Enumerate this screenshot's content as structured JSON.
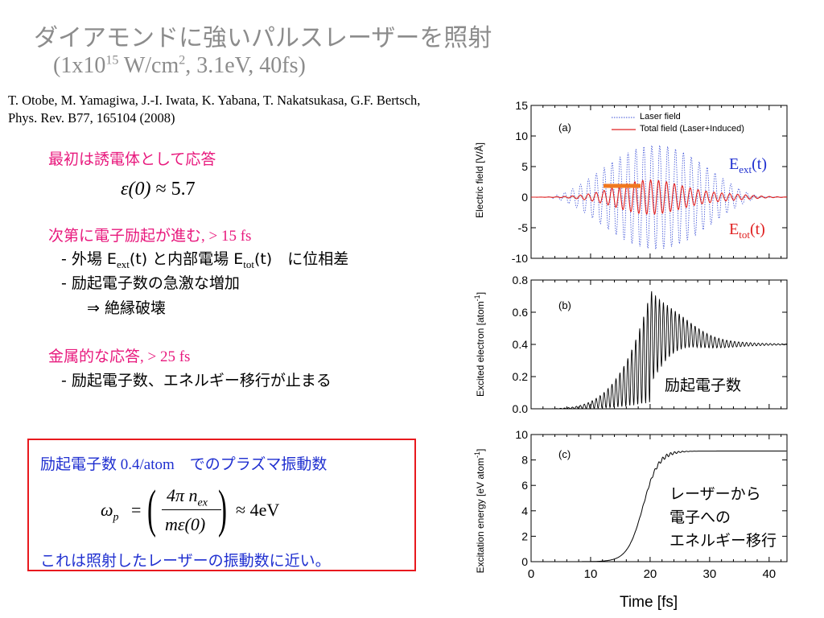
{
  "slide": {
    "title": "ダイアモンドに強いパルスレーザーを照射",
    "subtitle_pre": "(1x10",
    "subtitle_exp1": "15",
    "subtitle_mid": " W/cm",
    "subtitle_exp2": "2",
    "subtitle_post": ", 3.1eV, 40fs)",
    "citation_line1": "T. Otobe, M. Yamagiwa, J.-I. Iwata, K. Yabana, T. Nakatsukasa, G.F. Bertsch,",
    "citation_line2": "Phys. Rev. B77, 165104 (2008)"
  },
  "body": {
    "sec1_heading": "最初は誘電体として応答",
    "sec1_eq_lhs": "ε(0)",
    "sec1_eq_rhs": "≈ 5.7",
    "sec2_heading_jp": "次第に電子励起が進む",
    "sec2_heading_val": ", > 15 fs",
    "sec2_item1_a": "- 外場 E",
    "sec2_item1_sub1": "ext",
    "sec2_item1_b": "(t) と内部電場 E",
    "sec2_item1_sub2": "tot",
    "sec2_item1_c": "(t)　に位相差",
    "sec2_item2": "- 励起電子数の急激な増加",
    "sec2_item3": "⇒ 絶縁破壊",
    "sec3_heading_jp": "金属的な応答",
    "sec3_heading_val": ", > 25 fs",
    "sec3_item1": "- 励起電子数、エネルギー移行が止まる"
  },
  "box": {
    "line1_jp": "励起電子数",
    "line1_val": " 0.4/atom",
    "line1_tail": "　でのプラズマ振動数",
    "eq_lhs": "ω",
    "eq_lhs_sub": "p",
    "eq_eqsign": "=",
    "eq_num": "4π n",
    "eq_num_sub": "ex",
    "eq_den": "mε(0)",
    "eq_rhs": "≈ 4eV",
    "line3": "これは照射したレーザーの振動数に近い。"
  },
  "figure": {
    "x_label": "Time [fs]",
    "x_ticks": [
      "0",
      "10",
      "20",
      "30",
      "40"
    ],
    "panel_a": {
      "tag": "(a)",
      "ylabel": "Electric field [V/Å]",
      "y_ticks": [
        "15",
        "10",
        "5",
        "0",
        "-5",
        "-10"
      ],
      "legend_laser": "Laser field",
      "legend_total": "Total field (Laser+Induced)",
      "ann_ext_main": "E",
      "ann_ext_sub": "ext",
      "ann_ext_tail": "(t)",
      "ann_tot_main": "E",
      "ann_tot_sub": "tot",
      "ann_tot_tail": "(t)",
      "laser_color": "#3a4fd6",
      "total_color": "#e02020",
      "marker_color": "#f07820"
    },
    "panel_b": {
      "tag": "(b)",
      "ylabel": "Excited electron [atom",
      "ylabel_exp": "-1",
      "ylabel_close": "]",
      "y_ticks": [
        "0.8",
        "0.6",
        "0.4",
        "0.2",
        "0.0"
      ],
      "annotation": "励起電子数"
    },
    "panel_c": {
      "tag": "(c)",
      "ylabel": "Excitation energy [eV atom",
      "ylabel_exp": "-1",
      "ylabel_close": "]",
      "y_ticks": [
        "10",
        "8",
        "6",
        "4",
        "2",
        "0"
      ],
      "annotation_l1": "レーザーから",
      "annotation_l2": "電子への",
      "annotation_l3": "エネルギー移行"
    }
  }
}
